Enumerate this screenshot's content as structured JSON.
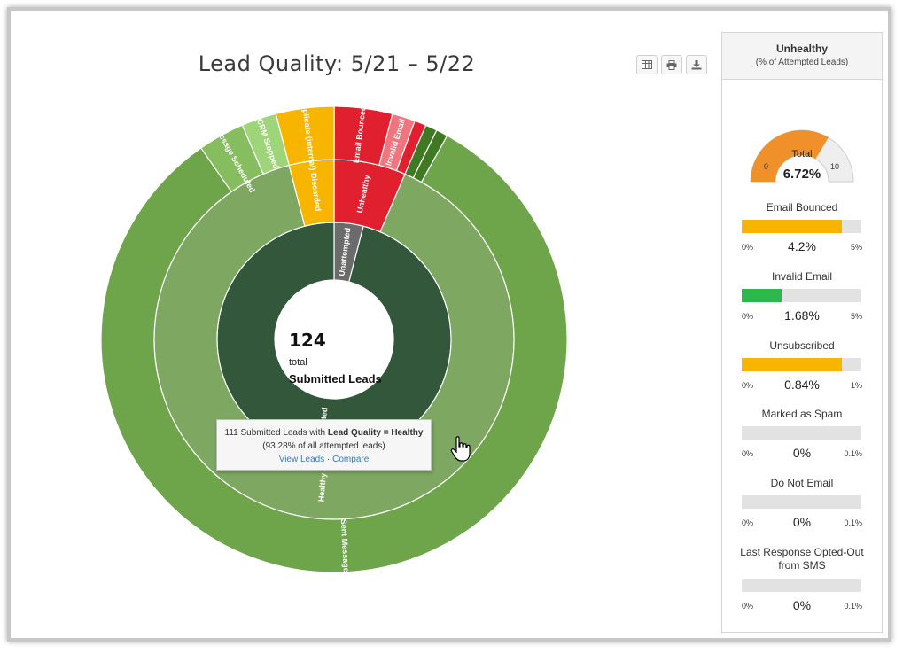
{
  "chart": {
    "title": "Lead Quality: 5/21 – 5/22",
    "center": {
      "count": "124",
      "total_label": "total",
      "label": "Submitted Leads"
    }
  },
  "toolbar": {
    "table_icon": "table-icon",
    "print_icon": "print-icon",
    "download_icon": "download-icon"
  },
  "tooltip": {
    "line1_prefix": "111 Submitted Leads with ",
    "line1_bold": "Lead Quality = Healthy",
    "line2": "(93.28% of all attempted leads)",
    "view_link": "View Leads",
    "separator": "·",
    "compare_link": "Compare"
  },
  "chart_data": {
    "type": "sunburst",
    "title": "Lead Quality: 5/21 – 5/22",
    "total": 124,
    "rings": [
      {
        "level": 1,
        "segments": [
          {
            "label": "Unattempted",
            "share": 0.0403,
            "color": "#6b6b6b"
          },
          {
            "label": "Attempted",
            "share": 0.9597,
            "color": "#32573a"
          }
        ]
      },
      {
        "level": 2,
        "segments": [
          {
            "label": "Unhealthy",
            "share": 0.0645,
            "color": "#e0202f"
          },
          {
            "label": "Healthy",
            "share": 0.8952,
            "color": "#7ea862"
          },
          {
            "label": "Discarded",
            "share": 0.0403,
            "color": "#f7b500"
          }
        ]
      },
      {
        "level": 3,
        "segments": [
          {
            "label": "Email Bounced",
            "share": 0.0403,
            "color": "#e0202f"
          },
          {
            "label": "Invalid Email",
            "share": 0.0161,
            "color": "#f1757e"
          },
          {
            "label": "",
            "share": 0.0081,
            "color": "#e0202f"
          },
          {
            "label": "",
            "share": 0.0081,
            "color": "#3f7a23"
          },
          {
            "label": "",
            "share": 0.0081,
            "color": "#3f7a23"
          },
          {
            "label": "Sent Message",
            "share": 0.8226,
            "color": "#6ea54a"
          },
          {
            "label": "Message Scheduled",
            "share": 0.0323,
            "color": "#86bd5e"
          },
          {
            "label": "CRM Stopped",
            "share": 0.0242,
            "color": "#9ed47a"
          },
          {
            "label": "Duplicate (internal)",
            "share": 0.0403,
            "color": "#f7b500"
          }
        ]
      }
    ]
  },
  "side": {
    "title": "Unhealthy",
    "subtitle": "(% of Attempted Leads)",
    "gauge": {
      "label": "Total",
      "value": "6.72%",
      "min": "0",
      "max": "10",
      "fraction": 0.672,
      "fill_color": "#f0902b",
      "track_color": "#eeeeee"
    },
    "metrics": [
      {
        "label": "Email Bounced",
        "value": "4.2%",
        "min": "0%",
        "max": "5%",
        "fraction": 0.84,
        "color": "#f7b500"
      },
      {
        "label": "Invalid Email",
        "value": "1.68%",
        "min": "0%",
        "max": "5%",
        "fraction": 0.336,
        "color": "#2db84b"
      },
      {
        "label": "Unsubscribed",
        "value": "0.84%",
        "min": "0%",
        "max": "1%",
        "fraction": 0.84,
        "color": "#f7b500"
      },
      {
        "label": "Marked as Spam",
        "value": "0%",
        "min": "0%",
        "max": "0.1%",
        "fraction": 0,
        "color": "#f7b500"
      },
      {
        "label": "Do Not Email",
        "value": "0%",
        "min": "0%",
        "max": "0.1%",
        "fraction": 0,
        "color": "#f7b500"
      },
      {
        "label": "Last Response Opted-Out from SMS",
        "value": "0%",
        "min": "0%",
        "max": "0.1%",
        "fraction": 0,
        "color": "#f7b500"
      }
    ]
  }
}
